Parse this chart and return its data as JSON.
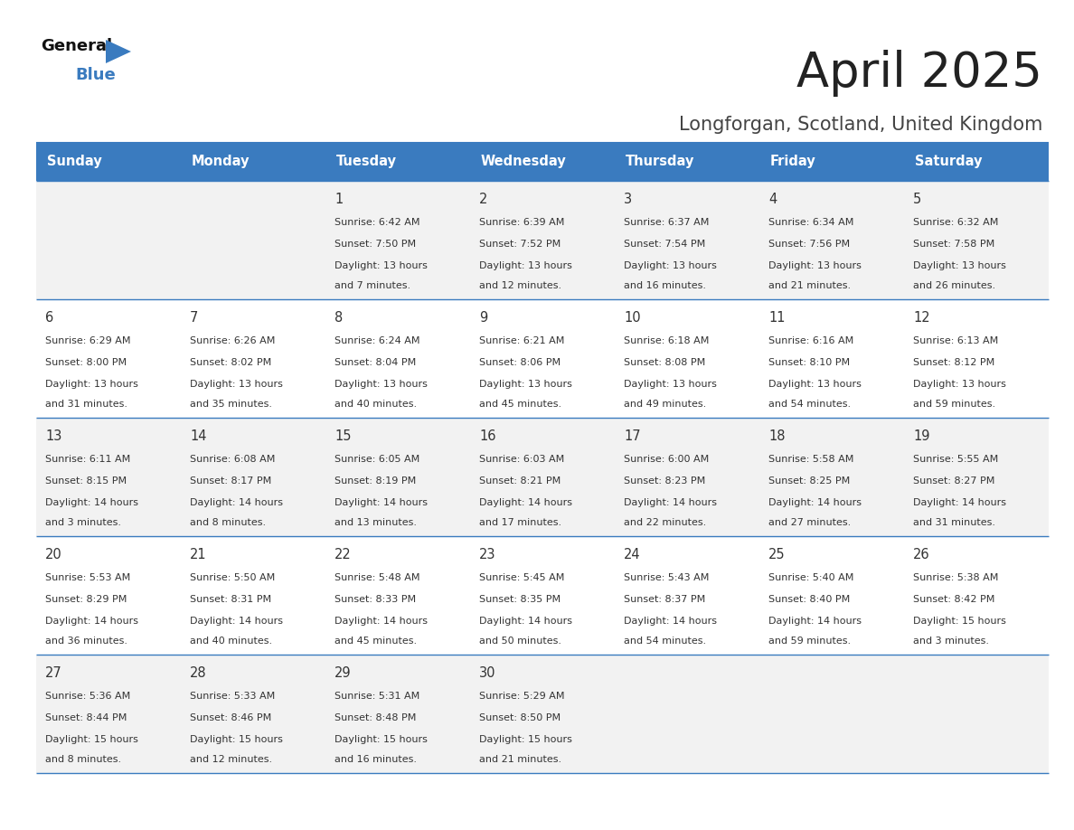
{
  "title": "April 2025",
  "subtitle": "Longforgan, Scotland, United Kingdom",
  "header_bg": "#3a7bbf",
  "header_text": "#ffffff",
  "row_bg_even": "#f2f2f2",
  "row_bg_odd": "#ffffff",
  "text_color": "#333333",
  "line_color": "#3a7bbf",
  "day_names": [
    "Sunday",
    "Monday",
    "Tuesday",
    "Wednesday",
    "Thursday",
    "Friday",
    "Saturday"
  ],
  "weeks": [
    [
      {
        "day": null,
        "sunrise": null,
        "sunset": null,
        "daylight_line1": null,
        "daylight_line2": null
      },
      {
        "day": null,
        "sunrise": null,
        "sunset": null,
        "daylight_line1": null,
        "daylight_line2": null
      },
      {
        "day": "1",
        "sunrise": "Sunrise: 6:42 AM",
        "sunset": "Sunset: 7:50 PM",
        "daylight_line1": "Daylight: 13 hours",
        "daylight_line2": "and 7 minutes."
      },
      {
        "day": "2",
        "sunrise": "Sunrise: 6:39 AM",
        "sunset": "Sunset: 7:52 PM",
        "daylight_line1": "Daylight: 13 hours",
        "daylight_line2": "and 12 minutes."
      },
      {
        "day": "3",
        "sunrise": "Sunrise: 6:37 AM",
        "sunset": "Sunset: 7:54 PM",
        "daylight_line1": "Daylight: 13 hours",
        "daylight_line2": "and 16 minutes."
      },
      {
        "day": "4",
        "sunrise": "Sunrise: 6:34 AM",
        "sunset": "Sunset: 7:56 PM",
        "daylight_line1": "Daylight: 13 hours",
        "daylight_line2": "and 21 minutes."
      },
      {
        "day": "5",
        "sunrise": "Sunrise: 6:32 AM",
        "sunset": "Sunset: 7:58 PM",
        "daylight_line1": "Daylight: 13 hours",
        "daylight_line2": "and 26 minutes."
      }
    ],
    [
      {
        "day": "6",
        "sunrise": "Sunrise: 6:29 AM",
        "sunset": "Sunset: 8:00 PM",
        "daylight_line1": "Daylight: 13 hours",
        "daylight_line2": "and 31 minutes."
      },
      {
        "day": "7",
        "sunrise": "Sunrise: 6:26 AM",
        "sunset": "Sunset: 8:02 PM",
        "daylight_line1": "Daylight: 13 hours",
        "daylight_line2": "and 35 minutes."
      },
      {
        "day": "8",
        "sunrise": "Sunrise: 6:24 AM",
        "sunset": "Sunset: 8:04 PM",
        "daylight_line1": "Daylight: 13 hours",
        "daylight_line2": "and 40 minutes."
      },
      {
        "day": "9",
        "sunrise": "Sunrise: 6:21 AM",
        "sunset": "Sunset: 8:06 PM",
        "daylight_line1": "Daylight: 13 hours",
        "daylight_line2": "and 45 minutes."
      },
      {
        "day": "10",
        "sunrise": "Sunrise: 6:18 AM",
        "sunset": "Sunset: 8:08 PM",
        "daylight_line1": "Daylight: 13 hours",
        "daylight_line2": "and 49 minutes."
      },
      {
        "day": "11",
        "sunrise": "Sunrise: 6:16 AM",
        "sunset": "Sunset: 8:10 PM",
        "daylight_line1": "Daylight: 13 hours",
        "daylight_line2": "and 54 minutes."
      },
      {
        "day": "12",
        "sunrise": "Sunrise: 6:13 AM",
        "sunset": "Sunset: 8:12 PM",
        "daylight_line1": "Daylight: 13 hours",
        "daylight_line2": "and 59 minutes."
      }
    ],
    [
      {
        "day": "13",
        "sunrise": "Sunrise: 6:11 AM",
        "sunset": "Sunset: 8:15 PM",
        "daylight_line1": "Daylight: 14 hours",
        "daylight_line2": "and 3 minutes."
      },
      {
        "day": "14",
        "sunrise": "Sunrise: 6:08 AM",
        "sunset": "Sunset: 8:17 PM",
        "daylight_line1": "Daylight: 14 hours",
        "daylight_line2": "and 8 minutes."
      },
      {
        "day": "15",
        "sunrise": "Sunrise: 6:05 AM",
        "sunset": "Sunset: 8:19 PM",
        "daylight_line1": "Daylight: 14 hours",
        "daylight_line2": "and 13 minutes."
      },
      {
        "day": "16",
        "sunrise": "Sunrise: 6:03 AM",
        "sunset": "Sunset: 8:21 PM",
        "daylight_line1": "Daylight: 14 hours",
        "daylight_line2": "and 17 minutes."
      },
      {
        "day": "17",
        "sunrise": "Sunrise: 6:00 AM",
        "sunset": "Sunset: 8:23 PM",
        "daylight_line1": "Daylight: 14 hours",
        "daylight_line2": "and 22 minutes."
      },
      {
        "day": "18",
        "sunrise": "Sunrise: 5:58 AM",
        "sunset": "Sunset: 8:25 PM",
        "daylight_line1": "Daylight: 14 hours",
        "daylight_line2": "and 27 minutes."
      },
      {
        "day": "19",
        "sunrise": "Sunrise: 5:55 AM",
        "sunset": "Sunset: 8:27 PM",
        "daylight_line1": "Daylight: 14 hours",
        "daylight_line2": "and 31 minutes."
      }
    ],
    [
      {
        "day": "20",
        "sunrise": "Sunrise: 5:53 AM",
        "sunset": "Sunset: 8:29 PM",
        "daylight_line1": "Daylight: 14 hours",
        "daylight_line2": "and 36 minutes."
      },
      {
        "day": "21",
        "sunrise": "Sunrise: 5:50 AM",
        "sunset": "Sunset: 8:31 PM",
        "daylight_line1": "Daylight: 14 hours",
        "daylight_line2": "and 40 minutes."
      },
      {
        "day": "22",
        "sunrise": "Sunrise: 5:48 AM",
        "sunset": "Sunset: 8:33 PM",
        "daylight_line1": "Daylight: 14 hours",
        "daylight_line2": "and 45 minutes."
      },
      {
        "day": "23",
        "sunrise": "Sunrise: 5:45 AM",
        "sunset": "Sunset: 8:35 PM",
        "daylight_line1": "Daylight: 14 hours",
        "daylight_line2": "and 50 minutes."
      },
      {
        "day": "24",
        "sunrise": "Sunrise: 5:43 AM",
        "sunset": "Sunset: 8:37 PM",
        "daylight_line1": "Daylight: 14 hours",
        "daylight_line2": "and 54 minutes."
      },
      {
        "day": "25",
        "sunrise": "Sunrise: 5:40 AM",
        "sunset": "Sunset: 8:40 PM",
        "daylight_line1": "Daylight: 14 hours",
        "daylight_line2": "and 59 minutes."
      },
      {
        "day": "26",
        "sunrise": "Sunrise: 5:38 AM",
        "sunset": "Sunset: 8:42 PM",
        "daylight_line1": "Daylight: 15 hours",
        "daylight_line2": "and 3 minutes."
      }
    ],
    [
      {
        "day": "27",
        "sunrise": "Sunrise: 5:36 AM",
        "sunset": "Sunset: 8:44 PM",
        "daylight_line1": "Daylight: 15 hours",
        "daylight_line2": "and 8 minutes."
      },
      {
        "day": "28",
        "sunrise": "Sunrise: 5:33 AM",
        "sunset": "Sunset: 8:46 PM",
        "daylight_line1": "Daylight: 15 hours",
        "daylight_line2": "and 12 minutes."
      },
      {
        "day": "29",
        "sunrise": "Sunrise: 5:31 AM",
        "sunset": "Sunset: 8:48 PM",
        "daylight_line1": "Daylight: 15 hours",
        "daylight_line2": "and 16 minutes."
      },
      {
        "day": "30",
        "sunrise": "Sunrise: 5:29 AM",
        "sunset": "Sunset: 8:50 PM",
        "daylight_line1": "Daylight: 15 hours",
        "daylight_line2": "and 21 minutes."
      },
      {
        "day": null,
        "sunrise": null,
        "sunset": null,
        "daylight_line1": null,
        "daylight_line2": null
      },
      {
        "day": null,
        "sunrise": null,
        "sunset": null,
        "daylight_line1": null,
        "daylight_line2": null
      },
      {
        "day": null,
        "sunrise": null,
        "sunset": null,
        "daylight_line1": null,
        "daylight_line2": null
      }
    ]
  ]
}
